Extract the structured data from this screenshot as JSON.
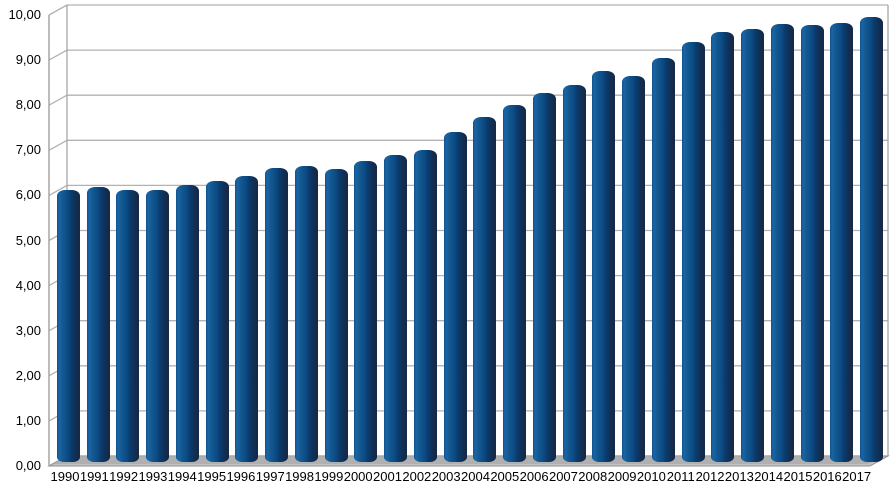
{
  "chart_data": {
    "type": "bar",
    "style": "3d-rounded-column",
    "title": "",
    "xlabel": "",
    "ylabel": "",
    "legend": "none",
    "grid": true,
    "number_format": "comma-decimal",
    "categories": [
      "1990",
      "1991",
      "1992",
      "1993",
      "1994",
      "1995",
      "1996",
      "1997",
      "1998",
      "1999",
      "2000",
      "2001",
      "2002",
      "2003",
      "2004",
      "2005",
      "2006",
      "2007",
      "2008",
      "2009",
      "2010",
      "2011",
      "2012",
      "2013",
      "2014",
      "2015",
      "2016",
      "2017"
    ],
    "values": [
      6.02,
      6.1,
      6.04,
      6.02,
      6.14,
      6.24,
      6.34,
      6.51,
      6.56,
      6.49,
      6.67,
      6.81,
      6.92,
      7.32,
      7.65,
      7.92,
      8.19,
      8.35,
      8.68,
      8.55,
      8.95,
      9.32,
      9.54,
      9.6,
      9.71,
      9.7,
      9.74,
      9.87
    ],
    "ylim": [
      0,
      10
    ],
    "ytick_step": 1,
    "ytick_labels": [
      "0,00",
      "1,00",
      "2,00",
      "3,00",
      "4,00",
      "5,00",
      "6,00",
      "7,00",
      "8,00",
      "9,00",
      "10,00"
    ],
    "colors": {
      "bar_edge_left": "#0f518e",
      "bar_highlight": "#1b64a5",
      "bar_mid": "#0c4c86",
      "bar_dark": "#0a3c6d",
      "bar_shade": "#142947",
      "bar_cap_shadow": "#9b9b9b",
      "gridline": "#b2b2b2",
      "axis_line": "#a6a6a6",
      "floor_fill": "#c2c2c2",
      "floor_shadow": "#a9a9a9",
      "floor_edge": "#8f8f8f",
      "background": "#ffffff",
      "text": "#000000"
    }
  }
}
